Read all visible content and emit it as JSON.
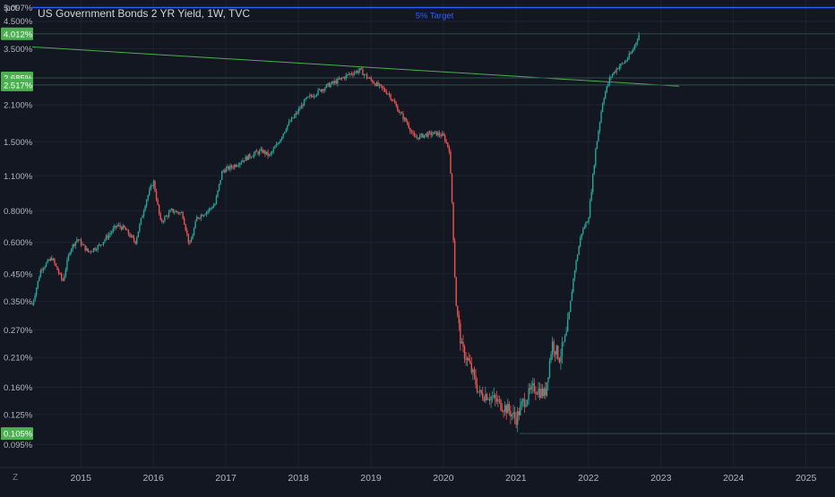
{
  "unit_label": "pct",
  "title": "US Government Bonds 2 YR Yield, 1W, TVC",
  "scale_icon": "Z",
  "target_label": "5% Target",
  "colors": {
    "background": "#131722",
    "grid": "#1e2230",
    "axis_text": "#b2b5be",
    "up": "#26a69a",
    "down": "#ef5350",
    "target_line": "#2962ff",
    "trend_line": "#4caf50",
    "price_badge": "#4caf50"
  },
  "chart_data": {
    "type": "candlestick",
    "title": "US Government Bonds 2 YR Yield, 1W, TVC",
    "ylabel": "pct",
    "y_scale": "log",
    "ylim": [
      0.085,
      5.2
    ],
    "xlim": [
      2014.33,
      2025.4
    ],
    "grid": true,
    "y_ticks": [
      {
        "value": 5.097,
        "label": "5.097%"
      },
      {
        "value": 4.5,
        "label": "4.500%"
      },
      {
        "value": 3.5,
        "label": "3.500%"
      },
      {
        "value": 2.1,
        "label": "2.100%"
      },
      {
        "value": 1.5,
        "label": "1.500%"
      },
      {
        "value": 1.1,
        "label": "1.100%"
      },
      {
        "value": 0.8,
        "label": "0.800%"
      },
      {
        "value": 0.6,
        "label": "0.600%"
      },
      {
        "value": 0.45,
        "label": "0.450%"
      },
      {
        "value": 0.35,
        "label": "0.350%"
      },
      {
        "value": 0.27,
        "label": "0.270%"
      },
      {
        "value": 0.21,
        "label": "0.210%"
      },
      {
        "value": 0.16,
        "label": "0.160%"
      },
      {
        "value": 0.125,
        "label": "0.125%"
      },
      {
        "value": 0.095,
        "label": "0.095%"
      }
    ],
    "x_ticks": [
      "2015",
      "2016",
      "2017",
      "2018",
      "2019",
      "2020",
      "2021",
      "2022",
      "2023",
      "2024",
      "2025"
    ],
    "price_labels": [
      {
        "value": 4.012,
        "label": "4.012%"
      },
      {
        "value": 2.685,
        "label": "2.685%"
      },
      {
        "value": 2.517,
        "label": "2.517%"
      },
      {
        "value": 0.105,
        "label": "0.105%"
      }
    ],
    "annotations": [
      {
        "type": "horizontal_line",
        "value": 5.097,
        "label": "5% Target"
      },
      {
        "type": "trend_line",
        "points": [
          [
            2014.33,
            3.56
          ],
          [
            2023.25,
            2.49
          ]
        ]
      },
      {
        "type": "horizontal_line",
        "value": 4.012
      },
      {
        "type": "horizontal_line",
        "value": 2.685
      },
      {
        "type": "horizontal_line",
        "value": 2.517
      },
      {
        "type": "horizontal_segment",
        "value": 0.105,
        "from": 2021.05,
        "to": 2025.4
      }
    ],
    "series": [
      {
        "values": [
          [
            2014.33,
            0.34
          ],
          [
            2014.45,
            0.47
          ],
          [
            2014.6,
            0.52
          ],
          [
            2014.75,
            0.42
          ],
          [
            2014.85,
            0.56
          ],
          [
            2014.95,
            0.62
          ],
          [
            2015.1,
            0.55
          ],
          [
            2015.25,
            0.58
          ],
          [
            2015.4,
            0.65
          ],
          [
            2015.5,
            0.7
          ],
          [
            2015.6,
            0.68
          ],
          [
            2015.75,
            0.6
          ],
          [
            2015.9,
            0.88
          ],
          [
            2016.0,
            1.05
          ],
          [
            2016.1,
            0.72
          ],
          [
            2016.25,
            0.8
          ],
          [
            2016.4,
            0.78
          ],
          [
            2016.5,
            0.58
          ],
          [
            2016.6,
            0.75
          ],
          [
            2016.75,
            0.8
          ],
          [
            2016.85,
            0.85
          ],
          [
            2016.95,
            1.15
          ],
          [
            2017.1,
            1.2
          ],
          [
            2017.25,
            1.28
          ],
          [
            2017.4,
            1.35
          ],
          [
            2017.5,
            1.38
          ],
          [
            2017.6,
            1.32
          ],
          [
            2017.7,
            1.45
          ],
          [
            2017.85,
            1.75
          ],
          [
            2017.95,
            1.9
          ],
          [
            2018.1,
            2.2
          ],
          [
            2018.25,
            2.35
          ],
          [
            2018.4,
            2.5
          ],
          [
            2018.55,
            2.62
          ],
          [
            2018.7,
            2.78
          ],
          [
            2018.85,
            2.88
          ],
          [
            2018.95,
            2.7
          ],
          [
            2019.1,
            2.5
          ],
          [
            2019.25,
            2.32
          ],
          [
            2019.4,
            1.95
          ],
          [
            2019.5,
            1.78
          ],
          [
            2019.6,
            1.55
          ],
          [
            2019.75,
            1.6
          ],
          [
            2019.9,
            1.62
          ],
          [
            2020.0,
            1.58
          ],
          [
            2020.08,
            1.4
          ],
          [
            2020.12,
            0.85
          ],
          [
            2020.17,
            0.35
          ],
          [
            2020.25,
            0.23
          ],
          [
            2020.35,
            0.2
          ],
          [
            2020.5,
            0.15
          ],
          [
            2020.6,
            0.15
          ],
          [
            2020.75,
            0.14
          ],
          [
            2020.9,
            0.13
          ],
          [
            2021.0,
            0.12
          ],
          [
            2021.1,
            0.14
          ],
          [
            2021.25,
            0.16
          ],
          [
            2021.4,
            0.15
          ],
          [
            2021.5,
            0.24
          ],
          [
            2021.6,
            0.21
          ],
          [
            2021.7,
            0.26
          ],
          [
            2021.8,
            0.45
          ],
          [
            2021.9,
            0.65
          ],
          [
            2022.0,
            0.75
          ],
          [
            2022.1,
            1.4
          ],
          [
            2022.2,
            2.2
          ],
          [
            2022.3,
            2.7
          ],
          [
            2022.4,
            2.95
          ],
          [
            2022.5,
            3.1
          ],
          [
            2022.6,
            3.4
          ],
          [
            2022.7,
            4.01
          ]
        ]
      }
    ]
  }
}
